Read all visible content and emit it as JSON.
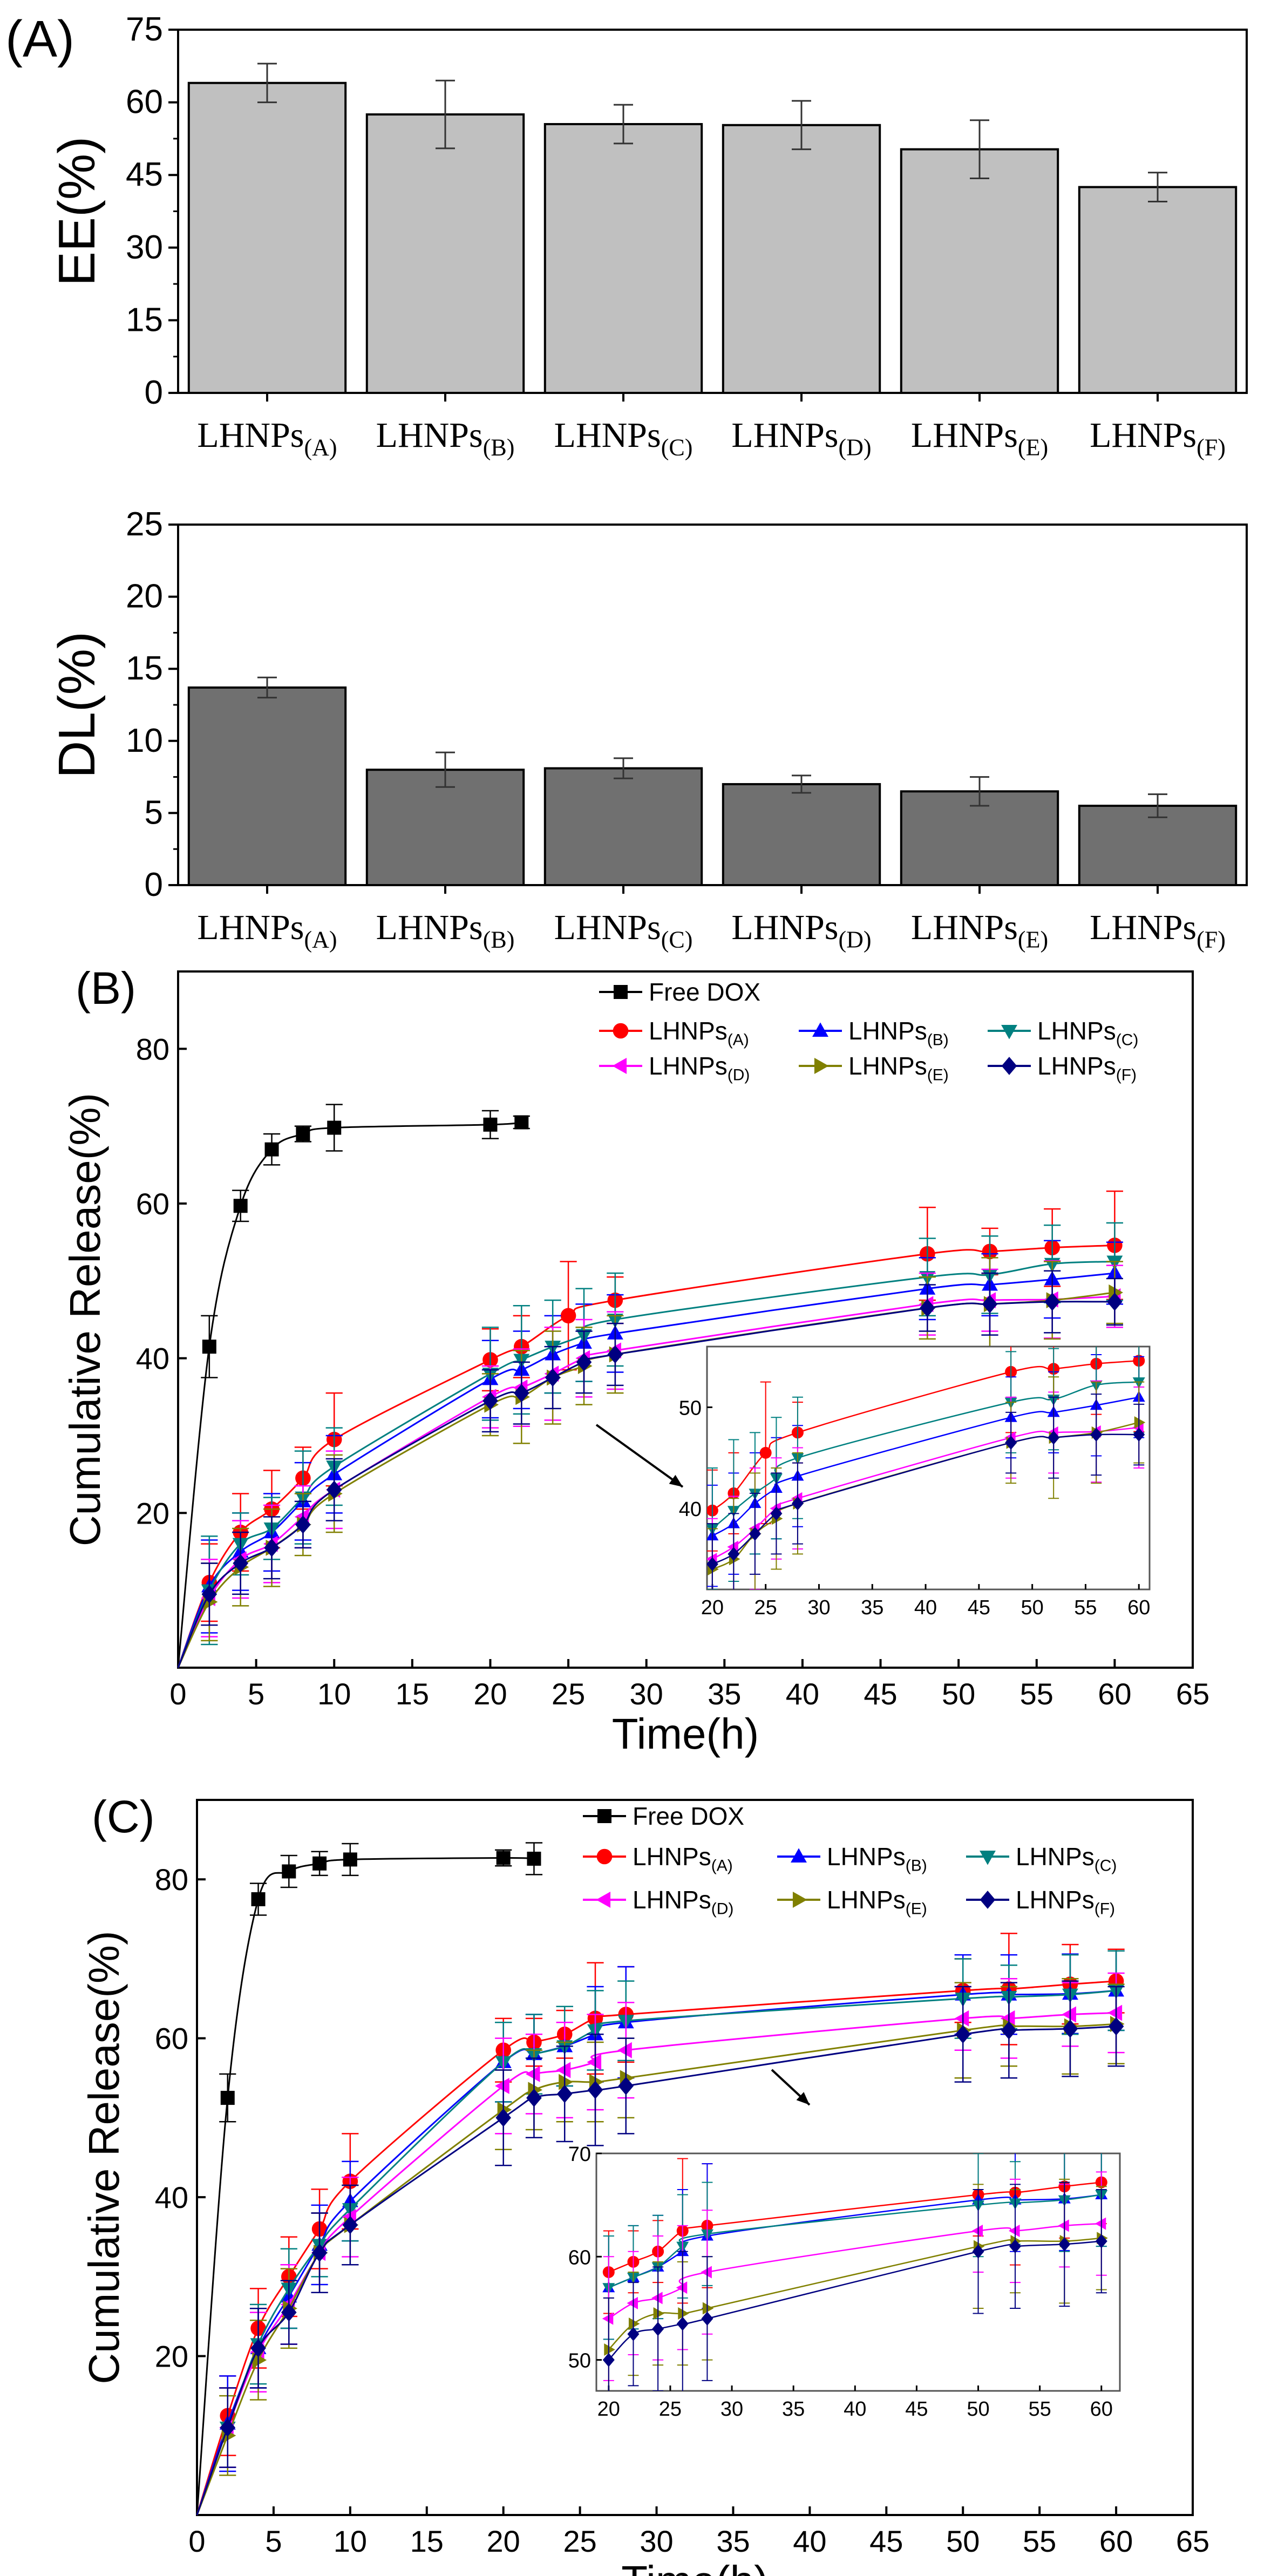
{
  "colors": {
    "bar_ee": "#c0c0c0",
    "bar_dl": "#707070",
    "free_dox": "#000000",
    "A": "#ff0000",
    "B": "#0000ff",
    "C": "#008080",
    "D": "#ff00ff",
    "E": "#808000",
    "F": "#000080"
  },
  "chart_data": [
    {
      "id": "A_top",
      "type": "bar",
      "panel_label": "(A)",
      "ylabel": "EE(%)",
      "ylim": [
        0,
        75
      ],
      "yticks": [
        "0",
        "15",
        "30",
        "45",
        "60",
        "75"
      ],
      "categories": [
        "LHNPs",
        "LHNPs",
        "LHNPs",
        "LHNPs",
        "LHNPs",
        "LHNPs"
      ],
      "category_subscripts": [
        "(A)",
        "(B)",
        "(C)",
        "(D)",
        "(E)",
        "(F)"
      ],
      "values": [
        64,
        57.5,
        55.5,
        55.3,
        50.3,
        42.5
      ],
      "errors": [
        4,
        7,
        4,
        5,
        6,
        3
      ]
    },
    {
      "id": "A_bottom",
      "type": "bar",
      "ylabel": "DL(%)",
      "ylim": [
        0,
        25
      ],
      "yticks": [
        "0",
        "5",
        "10",
        "15",
        "20",
        "25"
      ],
      "categories": [
        "LHNPs",
        "LHNPs",
        "LHNPs",
        "LHNPs",
        "LHNPs",
        "LHNPs"
      ],
      "category_subscripts": [
        "(A)",
        "(B)",
        "(C)",
        "(D)",
        "(E)",
        "(F)"
      ],
      "values": [
        13.7,
        8.0,
        8.1,
        7.0,
        6.5,
        5.5
      ],
      "errors": [
        0.7,
        1.2,
        0.7,
        0.6,
        1.0,
        0.8
      ]
    },
    {
      "id": "B",
      "type": "line",
      "panel_label": "(B)",
      "xlabel": "Time(h)",
      "ylabel": "Cumulative Release(%)",
      "xlim": [
        0,
        65
      ],
      "ylim": [
        0,
        90
      ],
      "xticks": [
        "0",
        "5",
        "10",
        "15",
        "20",
        "25",
        "30",
        "35",
        "40",
        "45",
        "50",
        "55",
        "60",
        "65"
      ],
      "yticks": [
        "20",
        "40",
        "60",
        "80"
      ],
      "legend": [
        {
          "name": "Free DOX",
          "sub": ""
        },
        {
          "name": "LHNPs",
          "sub": "(A)"
        },
        {
          "name": "LHNPs",
          "sub": "(B)"
        },
        {
          "name": "LHNPs",
          "sub": "(C)"
        },
        {
          "name": "LHNPs",
          "sub": "(D)"
        },
        {
          "name": "LHNPs",
          "sub": "(E)"
        },
        {
          "name": "LHNPs",
          "sub": "(F)"
        }
      ],
      "series": [
        {
          "key": "free_dox",
          "marker": "square",
          "x": [
            0,
            2,
            4,
            6,
            8,
            10,
            20,
            22
          ],
          "values": [
            0,
            41.5,
            59.7,
            67,
            69,
            69.8,
            70.2,
            70.5
          ],
          "errors": [
            0,
            4,
            2,
            2,
            1,
            3,
            1.8,
            0.8
          ]
        },
        {
          "key": "A",
          "marker": "circle",
          "x": [
            0,
            2,
            4,
            6,
            8,
            10,
            20,
            22,
            25,
            28,
            48,
            52,
            56,
            60
          ],
          "values": [
            0,
            11,
            17.5,
            20.5,
            24.5,
            29.5,
            39.8,
            41.5,
            45.5,
            47.5,
            53.5,
            53.8,
            54.3,
            54.6
          ],
          "errors": [
            0,
            5,
            5,
            5,
            4,
            6,
            4,
            4,
            7,
            3,
            6,
            3,
            5,
            7
          ]
        },
        {
          "key": "B",
          "marker": "triangle-up",
          "x": [
            0,
            2,
            4,
            6,
            8,
            10,
            20,
            22,
            24,
            26,
            28,
            48,
            52,
            56,
            60
          ],
          "values": [
            0,
            10.5,
            15,
            17.5,
            21.5,
            25,
            37.3,
            38.5,
            40.5,
            42,
            43.2,
            49,
            49.5,
            50.2,
            51
          ],
          "errors": [
            0,
            6,
            5,
            5,
            5,
            5,
            5,
            5,
            5,
            5,
            5,
            4,
            4,
            5,
            4
          ]
        },
        {
          "key": "C",
          "marker": "triangle-down",
          "x": [
            0,
            2,
            4,
            6,
            8,
            10,
            20,
            22,
            24,
            26,
            28,
            48,
            52,
            56,
            60
          ],
          "values": [
            0,
            10,
            16,
            18,
            22,
            26,
            38,
            39.8,
            41.5,
            43,
            45,
            50.5,
            50.8,
            52.2,
            52.5
          ],
          "errors": [
            0,
            7,
            4,
            4,
            6,
            5,
            6,
            7,
            6,
            6,
            6,
            5,
            5,
            5,
            5
          ]
        },
        {
          "key": "D",
          "marker": "triangle-left",
          "x": [
            0,
            2,
            4,
            6,
            8,
            10,
            20,
            22,
            24,
            26,
            28,
            48,
            52,
            56,
            60
          ],
          "values": [
            0,
            9,
            14,
            16,
            19.5,
            23,
            35,
            36.2,
            38,
            40,
            41,
            47,
            47.5,
            47.6,
            48
          ],
          "errors": [
            0,
            5,
            5,
            5,
            4,
            5,
            4,
            5,
            6,
            5,
            5,
            4,
            4,
            5,
            4
          ]
        },
        {
          "key": "E",
          "marker": "triangle-right",
          "x": [
            0,
            2,
            4,
            6,
            8,
            10,
            20,
            22,
            24,
            26,
            28,
            48,
            52,
            56,
            60
          ],
          "values": [
            0,
            8.5,
            13,
            15.5,
            18.5,
            22.5,
            34,
            35,
            37.5,
            39,
            40.5,
            46.5,
            47,
            47.5,
            48.5
          ],
          "errors": [
            0,
            5,
            5,
            5,
            4,
            5,
            4,
            6,
            6,
            5,
            5,
            4,
            6,
            5,
            4
          ]
        },
        {
          "key": "F",
          "marker": "diamond",
          "x": [
            0,
            2,
            4,
            6,
            8,
            10,
            20,
            22,
            24,
            26,
            28,
            48,
            52,
            56,
            60
          ],
          "values": [
            0,
            9.5,
            13.5,
            15.5,
            18.5,
            23,
            34.5,
            35.5,
            37.5,
            39.5,
            40.5,
            46.5,
            47,
            47.3,
            47.3
          ],
          "errors": [
            0,
            4,
            4,
            4,
            3,
            4,
            4,
            4,
            4,
            4,
            4,
            3,
            4,
            4,
            3
          ]
        }
      ],
      "inset": {
        "xlim": [
          19.5,
          61
        ],
        "ylim": [
          32,
          56
        ],
        "xticks": [
          "20",
          "25",
          "30",
          "35",
          "40",
          "45",
          "50",
          "55",
          "60"
        ],
        "yticks": [
          "40",
          "50"
        ],
        "xfrom": 20
      }
    },
    {
      "id": "C",
      "type": "line",
      "panel_label": "(C)",
      "xlabel": "Time(h)",
      "ylabel": "Cumulative Release(%)",
      "xlim": [
        0,
        65
      ],
      "ylim": [
        0,
        90
      ],
      "xticks": [
        "0",
        "5",
        "10",
        "15",
        "20",
        "25",
        "30",
        "35",
        "40",
        "45",
        "50",
        "55",
        "60",
        "65"
      ],
      "yticks": [
        "20",
        "40",
        "60",
        "80"
      ],
      "legend": [
        {
          "name": "Free DOX",
          "sub": ""
        },
        {
          "name": "LHNPs",
          "sub": "(A)"
        },
        {
          "name": "LHNPs",
          "sub": "(B)"
        },
        {
          "name": "LHNPs",
          "sub": "(C)"
        },
        {
          "name": "LHNPs",
          "sub": "(D)"
        },
        {
          "name": "LHNPs",
          "sub": "(E)"
        },
        {
          "name": "LHNPs",
          "sub": "(F)"
        }
      ],
      "series": [
        {
          "key": "free_dox",
          "marker": "square",
          "x": [
            0,
            2,
            4,
            6,
            8,
            10,
            20,
            22
          ],
          "values": [
            0,
            52.5,
            77.5,
            81,
            82,
            82.5,
            82.7,
            82.6
          ],
          "errors": [
            0,
            3,
            2,
            2,
            1.5,
            2,
            1,
            2
          ]
        },
        {
          "key": "A",
          "marker": "circle",
          "x": [
            0,
            2,
            4,
            6,
            8,
            10,
            20,
            22,
            24,
            26,
            28,
            50,
            53,
            57,
            60
          ],
          "values": [
            0,
            12.5,
            23.5,
            30,
            36,
            42,
            58.5,
            59.5,
            60.5,
            62.5,
            63,
            66,
            66.2,
            66.8,
            67.2
          ],
          "errors": [
            0,
            5,
            5,
            5,
            5,
            6,
            4,
            3,
            3,
            7,
            6,
            4,
            7,
            5,
            4
          ]
        },
        {
          "key": "B",
          "marker": "triangle-up",
          "x": [
            0,
            2,
            4,
            6,
            8,
            10,
            20,
            22,
            24,
            26,
            28,
            50,
            53,
            57,
            60
          ],
          "values": [
            0,
            11.5,
            21,
            27.5,
            34,
            39.5,
            57,
            58,
            59,
            60.5,
            62,
            65.5,
            65.5,
            65.6,
            66
          ],
          "errors": [
            0,
            6,
            5,
            4,
            5,
            5,
            5,
            5,
            5,
            6,
            7,
            5,
            5,
            5,
            5
          ]
        },
        {
          "key": "C",
          "marker": "triangle-down",
          "x": [
            0,
            2,
            4,
            6,
            8,
            10,
            20,
            22,
            24,
            26,
            28,
            50,
            53,
            57,
            60
          ],
          "values": [
            0,
            11,
            21.5,
            28.5,
            34,
            38.5,
            57,
            58,
            59,
            61,
            62.2,
            65,
            65.2,
            65.5,
            66
          ],
          "errors": [
            0,
            5,
            5,
            5,
            4,
            4,
            5,
            5,
            5,
            5,
            5,
            5,
            4,
            5,
            5
          ]
        },
        {
          "key": "D",
          "marker": "triangle-left",
          "x": [
            0,
            2,
            4,
            6,
            8,
            10,
            20,
            22,
            24,
            26,
            28,
            50,
            53,
            57,
            60
          ],
          "values": [
            0,
            11,
            20.5,
            26.5,
            33,
            37.5,
            54,
            55.5,
            56,
            57,
            58.5,
            62.5,
            62.5,
            63,
            63.2
          ],
          "errors": [
            0,
            5,
            5,
            5,
            5,
            5,
            6,
            5,
            6,
            6,
            6,
            4,
            5,
            4,
            5
          ]
        },
        {
          "key": "E",
          "marker": "triangle-right",
          "x": [
            0,
            2,
            4,
            6,
            8,
            10,
            20,
            22,
            24,
            26,
            28,
            50,
            53,
            57,
            60
          ],
          "values": [
            0,
            10,
            19.5,
            26,
            33,
            36.5,
            51,
            53.5,
            54.5,
            54.5,
            55,
            61,
            61.5,
            61.5,
            61.8
          ],
          "errors": [
            0,
            5,
            5,
            5,
            5,
            5,
            5,
            5,
            5,
            5,
            5,
            6,
            5,
            6,
            5
          ]
        },
        {
          "key": "F",
          "marker": "diamond",
          "x": [
            0,
            2,
            4,
            6,
            8,
            10,
            20,
            22,
            24,
            26,
            28,
            50,
            53,
            57,
            60
          ],
          "values": [
            0,
            11,
            21,
            25.5,
            33,
            36.5,
            50,
            52.5,
            53,
            53.5,
            54,
            60.5,
            61,
            61.2,
            61.5
          ],
          "errors": [
            0,
            5,
            5,
            4,
            5,
            5,
            6,
            5,
            6,
            7,
            6,
            6,
            6,
            6,
            5
          ]
        }
      ],
      "inset": {
        "xlim": [
          19,
          61.5
        ],
        "ylim": [
          47,
          70
        ],
        "xticks": [
          "20",
          "25",
          "30",
          "35",
          "40",
          "45",
          "50",
          "55",
          "60"
        ],
        "yticks": [
          "50",
          "60",
          "70"
        ],
        "xfrom": 19
      }
    }
  ]
}
